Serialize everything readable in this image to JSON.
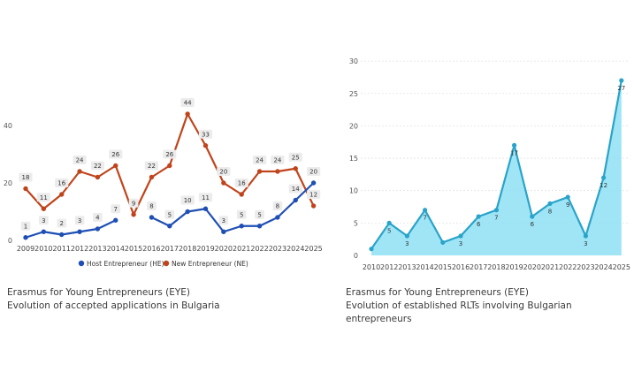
{
  "chart_data": [
    {
      "type": "line",
      "categories": [
        "2009",
        "2010",
        "2011",
        "2012",
        "2013",
        "2014",
        "2015",
        "2016",
        "2017",
        "2018",
        "2019",
        "2020",
        "2021",
        "2022",
        "2023",
        "2024",
        "2025"
      ],
      "series": [
        {
          "name": "Host Entrepreneur (HE)",
          "color": "#1f4fb5",
          "values": [
            1,
            3,
            2,
            3,
            4,
            7,
            null,
            8,
            5,
            10,
            11,
            3,
            5,
            5,
            8,
            14,
            20
          ]
        },
        {
          "name": "New Entrepreneur (NE)",
          "color": "#c0441b",
          "values": [
            18,
            11,
            16,
            24,
            22,
            26,
            9,
            22,
            26,
            44,
            33,
            20,
            16,
            24,
            24,
            25,
            12
          ]
        }
      ],
      "y_ticks": [
        "0",
        "20",
        "40"
      ],
      "ylim": [
        0,
        50
      ],
      "legend": "bottom",
      "title": ""
    },
    {
      "type": "area",
      "categories": [
        "2010",
        "2012",
        "2013",
        "2014",
        "2015",
        "2016",
        "2017",
        "2018",
        "2019",
        "2020",
        "2021",
        "2022",
        "2023",
        "2024",
        "2025"
      ],
      "values": [
        1,
        5,
        3,
        7,
        2,
        3,
        6,
        7,
        17,
        6,
        8,
        9,
        3,
        12,
        27
      ],
      "labels_shown": [
        null,
        "5",
        "3",
        "7",
        null,
        "3",
        "6",
        "7",
        "17",
        "6",
        "8",
        "9",
        "3",
        "12",
        "27"
      ],
      "color": "#2aa3c9",
      "fill": "#8ee0f4",
      "y_ticks": [
        "0",
        "5",
        "10",
        "15",
        "20",
        "25",
        "30"
      ],
      "ylim": [
        0,
        30
      ],
      "title": ""
    }
  ],
  "captions": [
    {
      "line1": "Erasmus for Young Entrepreneurs (EYE)",
      "line2": "Evolution of accepted applications in Bulgaria"
    },
    {
      "line1": "Erasmus for Young Entrepreneurs (EYE)",
      "line2": "Evolution of established RLTs involving Bulgarian entrepreneurs"
    }
  ]
}
